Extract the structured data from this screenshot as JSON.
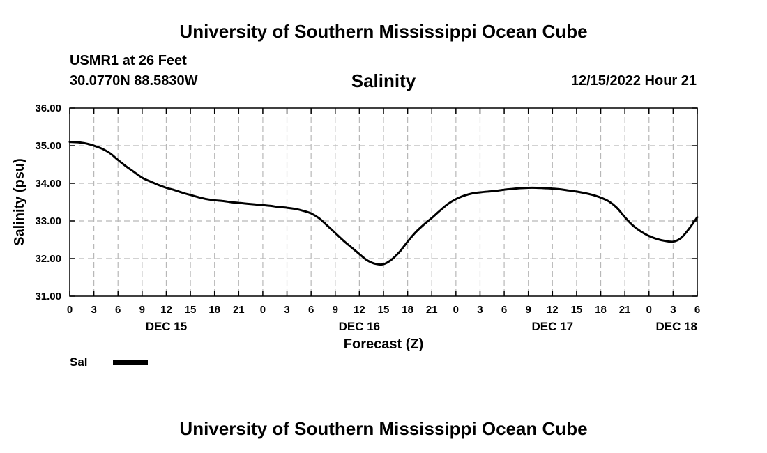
{
  "header": {
    "title": "University of Southern Mississippi Ocean Cube",
    "station": "USMR1 at 26 Feet",
    "coords": "30.0770N  88.5830W",
    "variable": "Salinity",
    "datetime": "12/15/2022 Hour 21"
  },
  "footer": {
    "title": "University of Southern Mississippi Ocean Cube"
  },
  "legend": {
    "label": "Sal",
    "color": "#000000"
  },
  "chart_data": {
    "type": "line",
    "title": "Salinity",
    "xlabel": "Forecast (Z)",
    "ylabel": "Salinity (psu)",
    "x_unit": "hours from DEC 15 00Z",
    "xlim": [
      0,
      78
    ],
    "ylim": [
      31,
      36
    ],
    "grid": true,
    "legend_position": "bottom-left",
    "y_ticks": [
      "31.00",
      "32.00",
      "33.00",
      "34.00",
      "35.00",
      "36.00"
    ],
    "y_tick_values": [
      31,
      32,
      33,
      34,
      35,
      36
    ],
    "x_ticks": [
      "0",
      "3",
      "6",
      "9",
      "12",
      "15",
      "18",
      "21",
      "0",
      "3",
      "6",
      "9",
      "12",
      "15",
      "18",
      "21",
      "0",
      "3",
      "6",
      "9",
      "12",
      "15",
      "18",
      "21",
      "0",
      "3",
      "6"
    ],
    "x_tick_step_hours": 3,
    "day_labels": [
      {
        "label": "DEC 15",
        "hour": 12
      },
      {
        "label": "DEC 16",
        "hour": 36
      },
      {
        "label": "DEC 17",
        "hour": 60
      },
      {
        "label": "DEC 18",
        "hour": 78
      }
    ],
    "series": [
      {
        "name": "Sal",
        "x": [
          0,
          1,
          2,
          3,
          4,
          5,
          6,
          7,
          8,
          9,
          10,
          11,
          12,
          13,
          14,
          15,
          16,
          17,
          18,
          19,
          20,
          21,
          22,
          23,
          24,
          25,
          26,
          27,
          28,
          29,
          30,
          31,
          32,
          33,
          34,
          35,
          36,
          37,
          38,
          39,
          40,
          41,
          42,
          43,
          44,
          45,
          46,
          47,
          48,
          49,
          50,
          51,
          52,
          53,
          54,
          55,
          56,
          57,
          58,
          59,
          60,
          61,
          62,
          63,
          64,
          65,
          66,
          67,
          68,
          69,
          70,
          71,
          72,
          73,
          74,
          75,
          76,
          77,
          78
        ],
        "values": [
          35.1,
          35.09,
          35.06,
          35.0,
          34.92,
          34.8,
          34.62,
          34.45,
          34.3,
          34.15,
          34.05,
          33.96,
          33.88,
          33.82,
          33.75,
          33.69,
          33.63,
          33.58,
          33.55,
          33.53,
          33.5,
          33.48,
          33.46,
          33.44,
          33.42,
          33.4,
          33.37,
          33.35,
          33.32,
          33.27,
          33.2,
          33.07,
          32.88,
          32.68,
          32.48,
          32.3,
          32.12,
          31.95,
          31.86,
          31.85,
          31.97,
          32.18,
          32.45,
          32.7,
          32.9,
          33.08,
          33.27,
          33.45,
          33.58,
          33.67,
          33.73,
          33.76,
          33.78,
          33.8,
          33.83,
          33.85,
          33.87,
          33.88,
          33.88,
          33.87,
          33.86,
          33.84,
          33.81,
          33.78,
          33.74,
          33.69,
          33.62,
          33.52,
          33.35,
          33.1,
          32.88,
          32.72,
          32.6,
          32.52,
          32.47,
          32.45,
          32.55,
          32.8,
          33.1
        ]
      }
    ]
  }
}
